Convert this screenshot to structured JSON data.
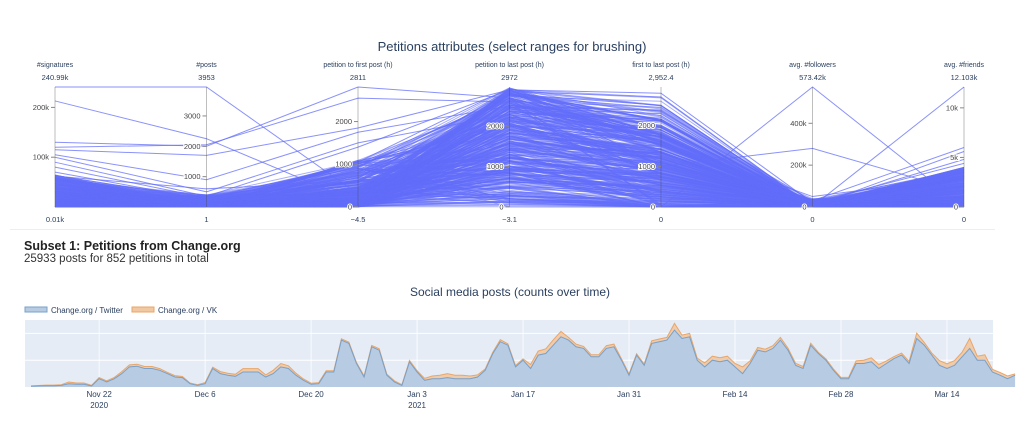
{
  "parcoords": {
    "title": "Petitions attributes (select ranges for brushing)",
    "line_color": "#636efa",
    "axes": [
      {
        "label": "#signatures",
        "range": [
          10,
          240990
        ],
        "max_label": "240.99k",
        "min_label": "0.01k",
        "ticks": [
          100000,
          200000
        ],
        "tick_labels": [
          "100k",
          "200k"
        ]
      },
      {
        "label": "#posts",
        "range": [
          1,
          3953
        ],
        "max_label": "3953",
        "min_label": "1",
        "ticks": [
          1000,
          2000,
          3000
        ],
        "tick_labels": [
          "1000",
          "2000",
          "3000"
        ]
      },
      {
        "label": "petition to first post (h)",
        "range": [
          -4.5,
          2811
        ],
        "max_label": "2811",
        "min_label": "−4.5",
        "ticks": [
          0,
          1000,
          2000
        ],
        "tick_labels": [
          "0",
          "1000",
          "2000"
        ]
      },
      {
        "label": "petition to last post (h)",
        "range": [
          -3.1,
          2972
        ],
        "max_label": "2972",
        "min_label": "−3.1",
        "ticks": [
          0,
          1000,
          2000
        ],
        "tick_labels": [
          "0",
          "1000",
          "2000"
        ]
      },
      {
        "label": "first to last post (h)",
        "range": [
          0,
          2952.4
        ],
        "max_label": "2,952.4",
        "min_label": "0",
        "ticks": [
          0,
          1000,
          2000
        ],
        "tick_labels": [
          "0",
          "1000",
          "2000"
        ]
      },
      {
        "label": "avg. #followers",
        "range": [
          0,
          573420
        ],
        "max_label": "573.42k",
        "min_label": "0",
        "ticks": [
          0,
          200000,
          400000
        ],
        "tick_labels": [
          "0",
          "200k",
          "400k"
        ]
      },
      {
        "label": "avg. #friends",
        "range": [
          0,
          12103
        ],
        "max_label": "12.103k",
        "min_label": "0",
        "ticks": [
          0,
          5000,
          10000
        ],
        "tick_labels": [
          "0",
          "5k",
          "10k"
        ]
      }
    ]
  },
  "subset": {
    "title": "Subset 1: Petitions from Change.org",
    "description": "25933 posts for 852 petitions in total"
  },
  "chart_data": [
    {
      "type": "parallel-coordinates",
      "title": "Petitions attributes (select ranges for brushing)",
      "dimensions": [
        "#signatures",
        "#posts",
        "petition to first post (h)",
        "petition to last post (h)",
        "first to last post (h)",
        "avg. #followers",
        "avg. #friends"
      ],
      "sample_lines": [
        [
          240990,
          3953,
          300,
          200,
          50,
          5000,
          500
        ],
        [
          213000,
          2250,
          100,
          2900,
          2800,
          20000,
          800
        ],
        [
          130000,
          2000,
          2811,
          2700,
          0,
          573420,
          0
        ],
        [
          120000,
          2050,
          2550,
          2600,
          50,
          3000,
          12103
        ],
        [
          115000,
          1700,
          1850,
          2900,
          1000,
          280000,
          1500
        ],
        [
          105000,
          900,
          1750,
          2500,
          750,
          30000,
          6000
        ],
        [
          100000,
          500,
          1500,
          2300,
          800,
          2000,
          5600
        ],
        [
          90000,
          350,
          1400,
          2900,
          1500,
          10000,
          4800
        ],
        [
          80000,
          300,
          1000,
          2700,
          1700,
          20000,
          4400
        ],
        [
          70000,
          250,
          800,
          2400,
          1600,
          5000,
          3800
        ],
        [
          62000,
          600,
          600,
          2200,
          1600,
          50000,
          3000
        ],
        [
          55000,
          200,
          300,
          2800,
          2500,
          1000,
          2600
        ],
        [
          48000,
          150,
          1050,
          2950,
          1900,
          3000,
          2300
        ],
        [
          40000,
          400,
          200,
          2000,
          1800,
          500,
          2000
        ]
      ]
    },
    {
      "type": "area",
      "stacked": true,
      "title": "Social media posts (counts over time)",
      "x_start": "2020-11-13",
      "x_step": "1 day",
      "x_ticks": [
        "Nov 22\n2020",
        "Dec 6",
        "Dec 20",
        "Jan 3\n2021",
        "Jan 17",
        "Jan 31",
        "Feb 14",
        "Feb 28",
        "Mar 14"
      ],
      "tick_dates": [
        "2020-11-22",
        "2020-12-06",
        "2020-12-20",
        "2021-01-03",
        "2021-01-17",
        "2021-01-31",
        "2021-02-14",
        "2021-02-28",
        "2021-03-14"
      ],
      "ylim": [
        0,
        500
      ],
      "y_grid": [
        200,
        400
      ],
      "grid": true,
      "legend": "top-left",
      "plot_bg": "#e5ecf6",
      "series": [
        {
          "name": "Change.org / Twitter",
          "color": "#7aa0c8",
          "fill": "#b7cbe2",
          "values": [
            5,
            8,
            10,
            10,
            12,
            25,
            20,
            20,
            8,
            62,
            38,
            62,
            100,
            150,
            155,
            138,
            138,
            125,
            100,
            75,
            70,
            25,
            12,
            25,
            138,
            100,
            88,
            80,
            112,
            112,
            112,
            75,
            100,
            150,
            138,
            88,
            50,
            20,
            25,
            112,
            112,
            350,
            325,
            175,
            75,
            300,
            275,
            88,
            38,
            12,
            188,
            112,
            50,
            62,
            62,
            70,
            62,
            62,
            62,
            75,
            125,
            250,
            338,
            312,
            150,
            200,
            138,
            238,
            250,
            312,
            375,
            350,
            300,
            288,
            225,
            225,
            288,
            300,
            200,
            88,
            238,
            162,
            325,
            338,
            350,
            425,
            362,
            375,
            200,
            150,
            200,
            188,
            200,
            150,
            100,
            175,
            275,
            262,
            288,
            350,
            275,
            162,
            138,
            312,
            250,
            200,
            125,
            62,
            62,
            175,
            175,
            188,
            138,
            175,
            212,
            238,
            175,
            362,
            312,
            238,
            162,
            138,
            162,
            225,
            288,
            200,
            200,
            112,
            88,
            62,
            88
          ]
        },
        {
          "name": "Change.org / VK",
          "color": "#e8a66a",
          "fill": "#f1c8a2",
          "values": [
            3,
            3,
            4,
            4,
            5,
            12,
            10,
            10,
            5,
            8,
            8,
            10,
            15,
            15,
            15,
            15,
            15,
            12,
            10,
            10,
            8,
            5,
            5,
            8,
            10,
            15,
            15,
            15,
            25,
            25,
            25,
            15,
            25,
            25,
            20,
            15,
            10,
            8,
            8,
            10,
            10,
            10,
            10,
            8,
            8,
            10,
            10,
            8,
            8,
            5,
            10,
            10,
            15,
            20,
            25,
            30,
            25,
            25,
            20,
            15,
            10,
            10,
            15,
            10,
            10,
            10,
            30,
            30,
            35,
            40,
            40,
            20,
            20,
            15,
            15,
            15,
            20,
            20,
            10,
            10,
            10,
            10,
            20,
            20,
            20,
            50,
            25,
            25,
            15,
            30,
            30,
            30,
            30,
            25,
            50,
            20,
            20,
            20,
            20,
            20,
            15,
            15,
            15,
            15,
            10,
            10,
            10,
            10,
            10,
            20,
            25,
            30,
            30,
            20,
            15,
            15,
            15,
            40,
            20,
            15,
            35,
            35,
            35,
            35,
            75,
            30,
            40,
            20,
            20,
            20,
            10
          ]
        }
      ]
    }
  ]
}
